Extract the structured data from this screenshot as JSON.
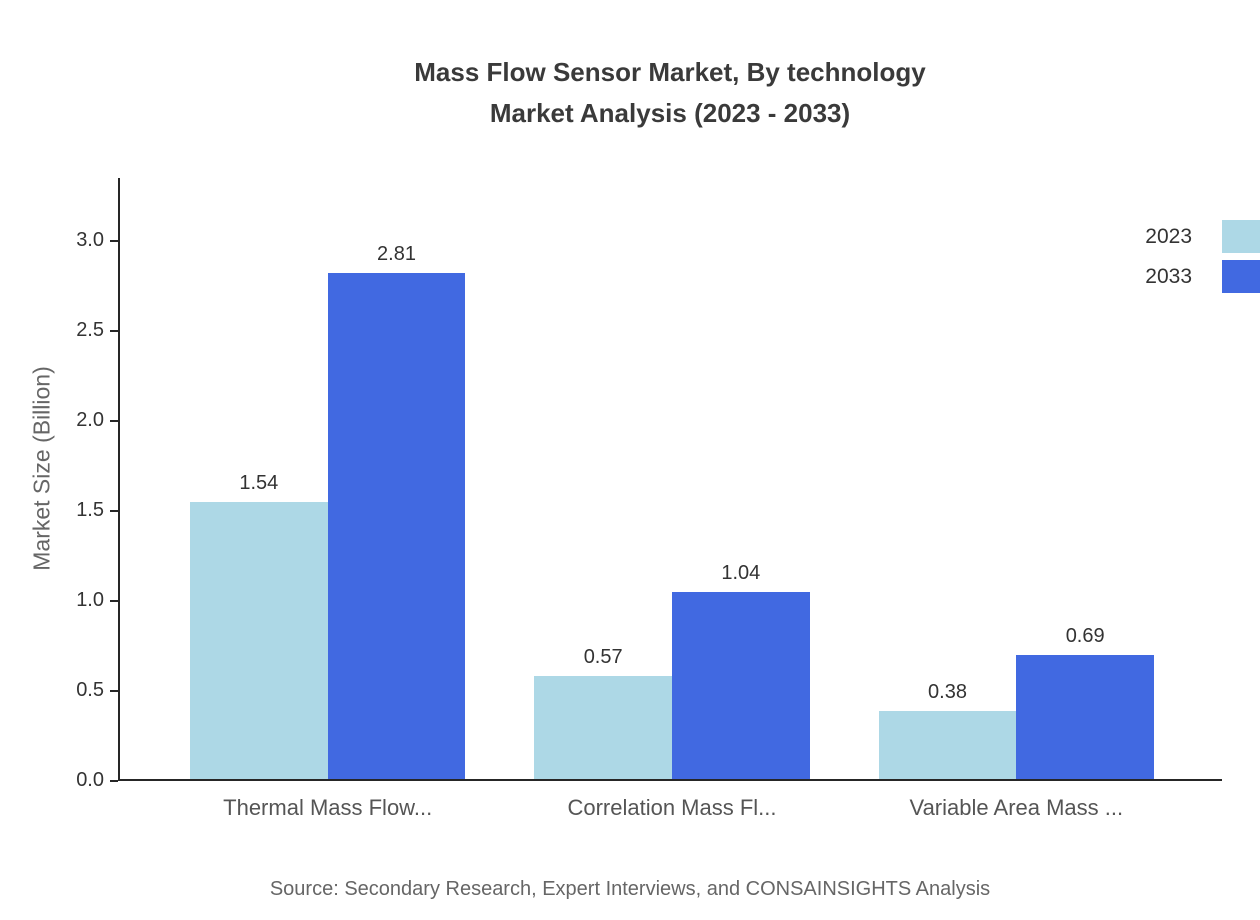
{
  "title": {
    "line1": "Mass Flow Sensor Market, By technology",
    "line2": "Market Analysis (2023 - 2033)"
  },
  "chart_data": {
    "type": "bar",
    "categories": [
      "Thermal Mass Flow...",
      "Correlation Mass Fl...",
      "Variable Area Mass ..."
    ],
    "series": [
      {
        "name": "2023",
        "color": "#add8e6",
        "values": [
          1.54,
          0.57,
          0.38
        ]
      },
      {
        "name": "2033",
        "color": "#4169e1",
        "values": [
          2.81,
          1.04,
          0.69
        ]
      }
    ],
    "title": "Mass Flow Sensor Market, By technology Market Analysis (2023 - 2033)",
    "xlabel": "",
    "ylabel": "Market Size (Billion)",
    "yticks": [
      0.0,
      0.5,
      1.0,
      1.5,
      2.0,
      2.5,
      3.0
    ],
    "ylim": [
      0,
      3.35
    ],
    "grid": false,
    "legend_position": "top-right"
  },
  "source": "Source: Secondary Research, Expert Interviews, and CONSAINSIGHTS Analysis"
}
